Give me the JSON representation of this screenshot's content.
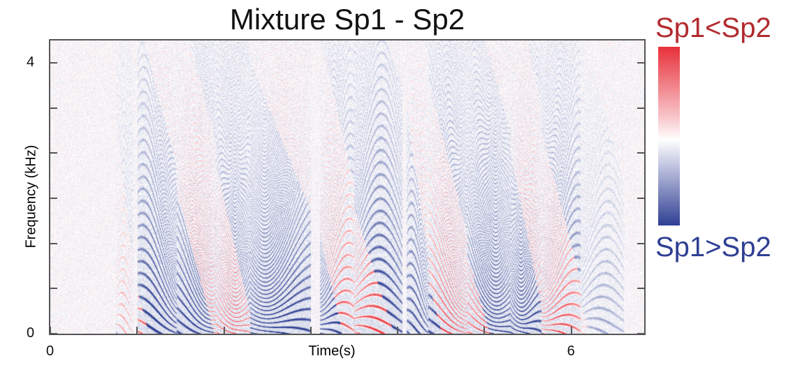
{
  "chart_data": {
    "type": "heatmap",
    "title": "Mixture Sp1 - Sp2",
    "xlabel": "Time(s)",
    "ylabel": "Frequency (kHz)",
    "xlim": [
      0,
      6.84
    ],
    "ylim": [
      0,
      4.33
    ],
    "x_tick_labels": [
      "0",
      "",
      "",
      "",
      "",
      "",
      "6"
    ],
    "x_ticks": [
      0,
      1,
      2,
      3,
      4,
      5,
      6
    ],
    "y_tick_labels": [
      "0",
      "",
      "",
      "",
      "",
      "",
      "4"
    ],
    "y_ticks": [
      0,
      0.667,
      1.333,
      2,
      2.667,
      3.333,
      4
    ],
    "colorbar": {
      "top_label": "Sp1<Sp2",
      "bottom_label": "Sp1>Sp2",
      "top_color": "#e8303a",
      "mid_color": "#ffffff",
      "bottom_color": "#2e3f93"
    },
    "label_colors": {
      "top": "#b22a2e",
      "bottom": "#2e3f93"
    }
  }
}
